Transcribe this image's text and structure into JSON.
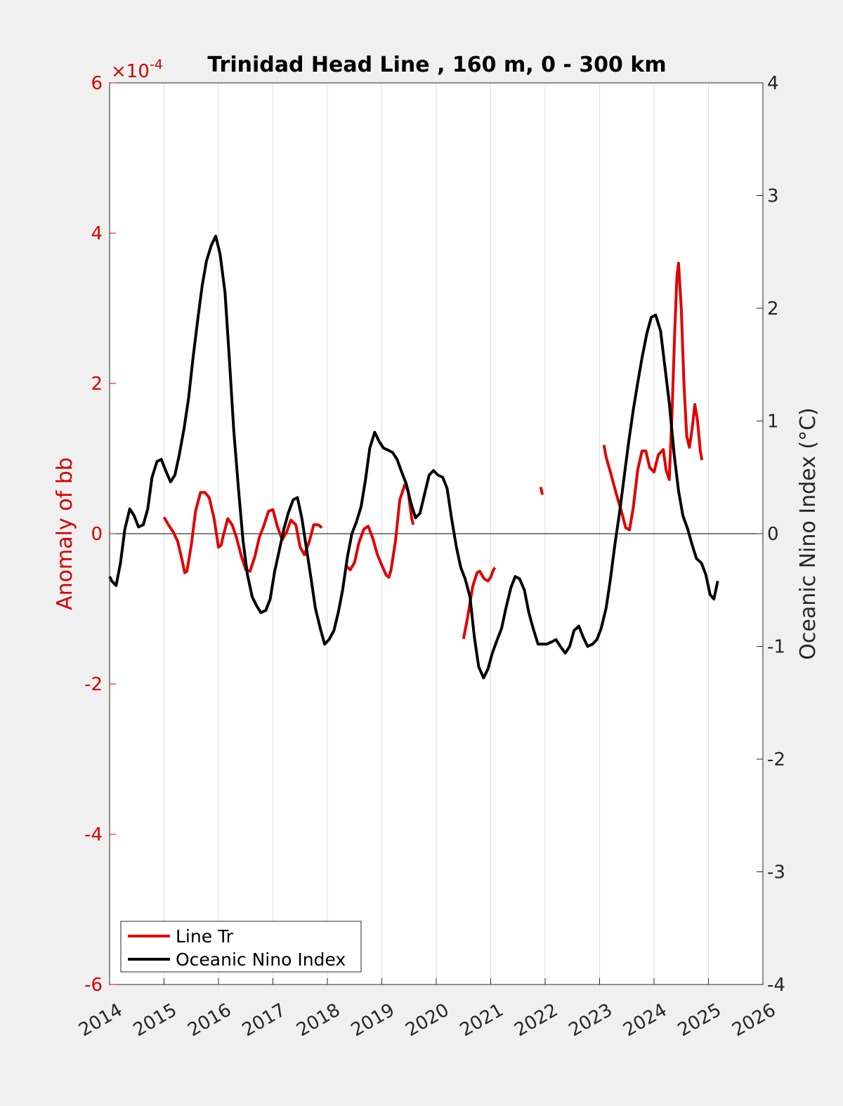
{
  "chart_data": {
    "type": "line",
    "title": "Trinidad Head Line , 160 m, 0 - 300 km",
    "xlabel": "",
    "ylabel_left": "Anomaly of bb",
    "ylabel_right": "Oceanic Nino Index (°C)",
    "left_exponent_base": "×10",
    "left_exponent_power": "-4",
    "xlim": [
      2014,
      2026
    ],
    "ylim_left": [
      -6,
      6
    ],
    "ylim_right": [
      -4,
      4
    ],
    "x_tick_values": [
      2014,
      2015,
      2016,
      2017,
      2018,
      2019,
      2020,
      2021,
      2022,
      2023,
      2024,
      2025,
      2026
    ],
    "x_tick_labels": [
      "2014",
      "2015",
      "2016",
      "2017",
      "2018",
      "2019",
      "2020",
      "2021",
      "2022",
      "2023",
      "2024",
      "2025",
      "2026"
    ],
    "y_left_tick_values": [
      -6,
      -4,
      -2,
      0,
      2,
      4,
      6
    ],
    "y_left_tick_labels": [
      "-6",
      "-4",
      "-2",
      "0",
      "2",
      "4",
      "6"
    ],
    "y_right_tick_values": [
      -4,
      -3,
      -2,
      -1,
      0,
      1,
      2,
      3,
      4
    ],
    "y_right_tick_labels": [
      "-4",
      "-3",
      "-2",
      "-1",
      "0",
      "1",
      "2",
      "3",
      "4"
    ],
    "grid": "vertical",
    "legend_position": "bottom-left",
    "colors": {
      "line_tr": "#e00000",
      "oni": "#000000",
      "left_axis": "#d40000"
    },
    "series": [
      {
        "name": "Line Tr",
        "axis": "left",
        "segments": [
          [
            [
              2015.0,
              0.22
            ],
            [
              2015.08,
              0.12
            ],
            [
              2015.17,
              0.02
            ],
            [
              2015.25,
              -0.1
            ],
            [
              2015.33,
              -0.35
            ],
            [
              2015.38,
              -0.52
            ],
            [
              2015.42,
              -0.5
            ],
            [
              2015.5,
              -0.15
            ],
            [
              2015.58,
              0.3
            ],
            [
              2015.67,
              0.55
            ],
            [
              2015.75,
              0.55
            ],
            [
              2015.83,
              0.48
            ],
            [
              2015.92,
              0.2
            ],
            [
              2016.0,
              -0.18
            ],
            [
              2016.05,
              -0.15
            ],
            [
              2016.08,
              -0.05
            ],
            [
              2016.17,
              0.2
            ],
            [
              2016.25,
              0.12
            ],
            [
              2016.33,
              -0.05
            ],
            [
              2016.42,
              -0.3
            ],
            [
              2016.5,
              -0.48
            ],
            [
              2016.58,
              -0.5
            ],
            [
              2016.67,
              -0.3
            ],
            [
              2016.75,
              -0.05
            ],
            [
              2016.83,
              0.1
            ],
            [
              2016.92,
              0.3
            ],
            [
              2017.0,
              0.32
            ],
            [
              2017.08,
              0.1
            ],
            [
              2017.17,
              -0.08
            ],
            [
              2017.25,
              0.02
            ],
            [
              2017.33,
              0.18
            ],
            [
              2017.42,
              0.12
            ],
            [
              2017.5,
              -0.18
            ],
            [
              2017.58,
              -0.28
            ],
            [
              2017.67,
              -0.1
            ],
            [
              2017.75,
              0.12
            ],
            [
              2017.83,
              0.12
            ],
            [
              2017.9,
              0.08
            ]
          ],
          [
            [
              2018.33,
              -0.42
            ],
            [
              2018.42,
              -0.48
            ],
            [
              2018.5,
              -0.38
            ],
            [
              2018.58,
              -0.12
            ],
            [
              2018.67,
              0.06
            ],
            [
              2018.75,
              0.1
            ],
            [
              2018.83,
              -0.05
            ],
            [
              2018.92,
              -0.28
            ],
            [
              2019.0,
              -0.42
            ],
            [
              2019.08,
              -0.55
            ],
            [
              2019.13,
              -0.58
            ],
            [
              2019.17,
              -0.48
            ],
            [
              2019.25,
              -0.1
            ],
            [
              2019.33,
              0.45
            ],
            [
              2019.42,
              0.65
            ],
            [
              2019.48,
              0.58
            ],
            [
              2019.55,
              0.2
            ],
            [
              2019.58,
              0.12
            ]
          ],
          [
            [
              2020.5,
              -1.4
            ],
            [
              2020.58,
              -1.1
            ],
            [
              2020.67,
              -0.7
            ],
            [
              2020.75,
              -0.52
            ],
            [
              2020.8,
              -0.5
            ],
            [
              2020.88,
              -0.6
            ],
            [
              2020.95,
              -0.63
            ],
            [
              2021.0,
              -0.58
            ],
            [
              2021.05,
              -0.48
            ],
            [
              2021.08,
              -0.45
            ]
          ],
          [
            [
              2021.92,
              0.62
            ],
            [
              2021.95,
              0.52
            ]
          ],
          [
            [
              2023.08,
              1.18
            ],
            [
              2023.12,
              1.02
            ],
            [
              2023.2,
              0.82
            ],
            [
              2023.3,
              0.55
            ],
            [
              2023.4,
              0.3
            ],
            [
              2023.48,
              0.08
            ],
            [
              2023.55,
              0.05
            ],
            [
              2023.62,
              0.35
            ],
            [
              2023.7,
              0.85
            ],
            [
              2023.78,
              1.1
            ],
            [
              2023.85,
              1.1
            ],
            [
              2023.92,
              0.88
            ],
            [
              2024.0,
              0.82
            ],
            [
              2024.08,
              1.05
            ],
            [
              2024.17,
              1.12
            ],
            [
              2024.22,
              0.85
            ],
            [
              2024.28,
              0.72
            ],
            [
              2024.33,
              1.6
            ],
            [
              2024.38,
              2.7
            ],
            [
              2024.42,
              3.42
            ],
            [
              2024.45,
              3.6
            ],
            [
              2024.5,
              3.0
            ],
            [
              2024.55,
              2.0
            ],
            [
              2024.6,
              1.3
            ],
            [
              2024.65,
              1.15
            ],
            [
              2024.7,
              1.4
            ],
            [
              2024.75,
              1.72
            ],
            [
              2024.8,
              1.5
            ],
            [
              2024.85,
              1.1
            ],
            [
              2024.88,
              0.98
            ]
          ]
        ]
      },
      {
        "name": "Oceanic Nino Index",
        "axis": "right",
        "segments": [
          [
            [
              2014.0,
              -0.38
            ],
            [
              2014.04,
              -0.42
            ],
            [
              2014.12,
              -0.46
            ],
            [
              2014.2,
              -0.26
            ],
            [
              2014.28,
              0.04
            ],
            [
              2014.37,
              0.22
            ],
            [
              2014.45,
              0.16
            ],
            [
              2014.53,
              0.06
            ],
            [
              2014.62,
              0.08
            ],
            [
              2014.7,
              0.22
            ],
            [
              2014.78,
              0.5
            ],
            [
              2014.87,
              0.64
            ],
            [
              2014.95,
              0.66
            ],
            [
              2015.03,
              0.56
            ],
            [
              2015.12,
              0.46
            ],
            [
              2015.2,
              0.52
            ],
            [
              2015.28,
              0.7
            ],
            [
              2015.37,
              0.94
            ],
            [
              2015.45,
              1.2
            ],
            [
              2015.53,
              1.55
            ],
            [
              2015.62,
              1.9
            ],
            [
              2015.7,
              2.2
            ],
            [
              2015.78,
              2.42
            ],
            [
              2015.87,
              2.56
            ],
            [
              2015.95,
              2.64
            ],
            [
              2016.03,
              2.48
            ],
            [
              2016.12,
              2.14
            ],
            [
              2016.2,
              1.55
            ],
            [
              2016.28,
              0.92
            ],
            [
              2016.37,
              0.38
            ],
            [
              2016.45,
              -0.06
            ],
            [
              2016.53,
              -0.36
            ],
            [
              2016.62,
              -0.56
            ],
            [
              2016.7,
              -0.64
            ],
            [
              2016.78,
              -0.7
            ],
            [
              2016.87,
              -0.68
            ],
            [
              2016.95,
              -0.58
            ],
            [
              2017.03,
              -0.34
            ],
            [
              2017.12,
              -0.14
            ],
            [
              2017.2,
              0.04
            ],
            [
              2017.28,
              0.18
            ],
            [
              2017.37,
              0.3
            ],
            [
              2017.45,
              0.32
            ],
            [
              2017.53,
              0.14
            ],
            [
              2017.62,
              -0.14
            ],
            [
              2017.7,
              -0.4
            ],
            [
              2017.78,
              -0.66
            ],
            [
              2017.87,
              -0.84
            ],
            [
              2017.95,
              -0.98
            ],
            [
              2018.03,
              -0.94
            ],
            [
              2018.12,
              -0.86
            ],
            [
              2018.2,
              -0.7
            ],
            [
              2018.28,
              -0.5
            ],
            [
              2018.37,
              -0.2
            ],
            [
              2018.45,
              0.0
            ],
            [
              2018.53,
              0.1
            ],
            [
              2018.62,
              0.24
            ],
            [
              2018.7,
              0.48
            ],
            [
              2018.78,
              0.76
            ],
            [
              2018.87,
              0.9
            ],
            [
              2018.95,
              0.82
            ],
            [
              2019.03,
              0.76
            ],
            [
              2019.12,
              0.74
            ],
            [
              2019.2,
              0.72
            ],
            [
              2019.28,
              0.66
            ],
            [
              2019.37,
              0.54
            ],
            [
              2019.45,
              0.44
            ],
            [
              2019.53,
              0.28
            ],
            [
              2019.62,
              0.14
            ],
            [
              2019.7,
              0.18
            ],
            [
              2019.78,
              0.34
            ],
            [
              2019.87,
              0.52
            ],
            [
              2019.95,
              0.56
            ],
            [
              2020.03,
              0.52
            ],
            [
              2020.12,
              0.5
            ],
            [
              2020.2,
              0.4
            ],
            [
              2020.28,
              0.14
            ],
            [
              2020.37,
              -0.12
            ],
            [
              2020.45,
              -0.3
            ],
            [
              2020.53,
              -0.4
            ],
            [
              2020.62,
              -0.56
            ],
            [
              2020.7,
              -0.92
            ],
            [
              2020.78,
              -1.18
            ],
            [
              2020.87,
              -1.28
            ],
            [
              2020.95,
              -1.2
            ],
            [
              2021.03,
              -1.06
            ],
            [
              2021.12,
              -0.94
            ],
            [
              2021.2,
              -0.84
            ],
            [
              2021.28,
              -0.66
            ],
            [
              2021.37,
              -0.48
            ],
            [
              2021.45,
              -0.38
            ],
            [
              2021.53,
              -0.4
            ],
            [
              2021.62,
              -0.5
            ],
            [
              2021.7,
              -0.7
            ],
            [
              2021.78,
              -0.84
            ],
            [
              2021.87,
              -0.98
            ],
            [
              2021.95,
              -0.98
            ],
            [
              2022.03,
              -0.98
            ],
            [
              2022.12,
              -0.96
            ],
            [
              2022.2,
              -0.94
            ],
            [
              2022.28,
              -1.0
            ],
            [
              2022.37,
              -1.06
            ],
            [
              2022.45,
              -1.0
            ],
            [
              2022.53,
              -0.86
            ],
            [
              2022.62,
              -0.82
            ],
            [
              2022.7,
              -0.92
            ],
            [
              2022.78,
              -1.0
            ],
            [
              2022.87,
              -0.98
            ],
            [
              2022.95,
              -0.94
            ],
            [
              2023.03,
              -0.84
            ],
            [
              2023.12,
              -0.66
            ],
            [
              2023.2,
              -0.4
            ],
            [
              2023.28,
              -0.1
            ],
            [
              2023.37,
              0.2
            ],
            [
              2023.45,
              0.5
            ],
            [
              2023.53,
              0.8
            ],
            [
              2023.62,
              1.1
            ],
            [
              2023.7,
              1.34
            ],
            [
              2023.78,
              1.56
            ],
            [
              2023.87,
              1.78
            ],
            [
              2023.95,
              1.92
            ],
            [
              2024.03,
              1.94
            ],
            [
              2024.12,
              1.8
            ],
            [
              2024.2,
              1.48
            ],
            [
              2024.28,
              1.16
            ],
            [
              2024.37,
              0.7
            ],
            [
              2024.45,
              0.38
            ],
            [
              2024.53,
              0.16
            ],
            [
              2024.62,
              0.04
            ],
            [
              2024.7,
              -0.1
            ],
            [
              2024.78,
              -0.22
            ],
            [
              2024.87,
              -0.26
            ],
            [
              2024.95,
              -0.36
            ],
            [
              2025.03,
              -0.54
            ],
            [
              2025.1,
              -0.58
            ],
            [
              2025.17,
              -0.42
            ]
          ]
        ]
      }
    ]
  }
}
